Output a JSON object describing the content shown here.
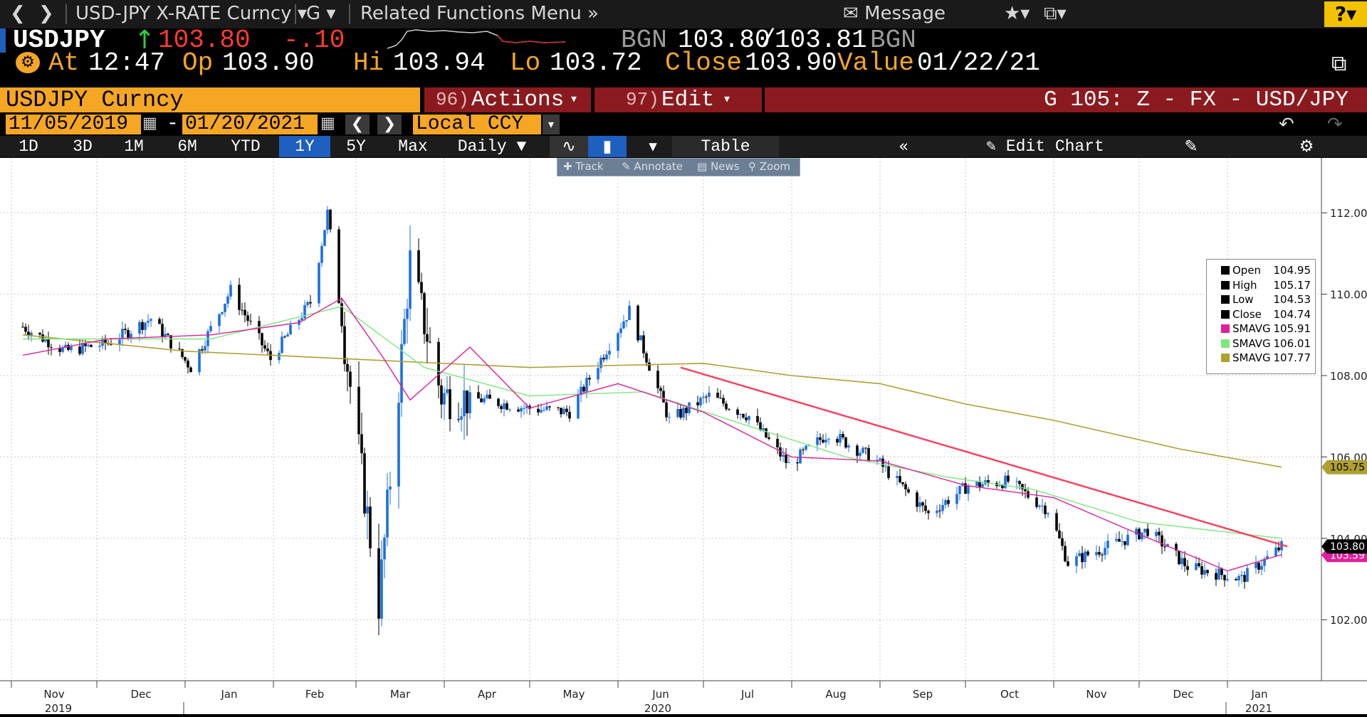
{
  "topnav": {
    "security": "USD-JPY X-RATE Curncy",
    "g_label": "G",
    "related": "Related Functions Menu",
    "message": "Message",
    "help": "?"
  },
  "quote": {
    "ticker": "USDJPY",
    "last": "103.80",
    "change": "-.10",
    "source": "BGN",
    "bid": "103.80",
    "slash": "/",
    "ask": "103.81",
    "source2": "BGN",
    "at_label": "At",
    "time": "12:47",
    "op_label": "Op",
    "open": "103.90",
    "hi_label": "Hi",
    "high": "103.94",
    "lo_label": "Lo",
    "low": "103.72",
    "close_label": "Close",
    "close": "103.90",
    "value_label": "Value",
    "value_date": "01/22/21"
  },
  "toolbar": {
    "security_field": "USDJPY Curncy",
    "actions_num": "96)",
    "actions": "Actions",
    "edit_num": "97)",
    "edit": "Edit",
    "title": "G 105: Z - FX - USD/JPY",
    "start_date": "11/05/2019",
    "dash": "-",
    "end_date": "01/20/2021",
    "currency": "Local CCY",
    "ranges": [
      "1D",
      "3D",
      "1M",
      "6M",
      "YTD",
      "1Y",
      "5Y",
      "Max"
    ],
    "selected_range": "1Y",
    "frequency": "Daily",
    "table": "Table",
    "edit_chart": "Edit Chart",
    "subtools": [
      "Track",
      "Annotate",
      "News",
      "Zoom"
    ]
  },
  "chart_data": {
    "type": "candlestick",
    "title": "",
    "ylim": [
      100.5,
      113.0
    ],
    "y_ticks": [
      "112.00",
      "110.00",
      "108.00",
      "106.00",
      "104.00",
      "102.00"
    ],
    "x_months": [
      "Nov",
      "Dec",
      "Jan",
      "Feb",
      "Mar",
      "Apr",
      "May",
      "Jun",
      "Jul",
      "Aug",
      "Sep",
      "Oct",
      "Nov",
      "Dec",
      "Jan"
    ],
    "x_years": [
      "2019",
      "2020",
      "2021"
    ],
    "grid": true,
    "legend_position": "right",
    "legend": [
      {
        "label": "Open",
        "value": "104.95",
        "color": "#000000"
      },
      {
        "label": "High",
        "value": "105.17",
        "color": "#000000"
      },
      {
        "label": "Low",
        "value": "104.53",
        "color": "#000000"
      },
      {
        "label": "Close",
        "value": "104.74",
        "color": "#000000"
      },
      {
        "label": "SMAVG",
        "value": "105.91",
        "color": "#e0209a"
      },
      {
        "label": "SMAVG",
        "value": "106.01",
        "color": "#7de87d"
      },
      {
        "label": "SMAVG",
        "value": "107.77",
        "color": "#b0a030"
      }
    ],
    "last_price_tag": "103.80",
    "ma_tag": "103.59",
    "long_ma_tag": "105.75",
    "close_series": [
      {
        "date": "2019-11-05",
        "value": 109.2
      },
      {
        "date": "2019-11-20",
        "value": 108.6
      },
      {
        "date": "2019-12-05",
        "value": 108.8
      },
      {
        "date": "2019-12-20",
        "value": 109.4
      },
      {
        "date": "2020-01-03",
        "value": 108.2
      },
      {
        "date": "2020-01-17",
        "value": 110.1
      },
      {
        "date": "2020-01-31",
        "value": 108.4
      },
      {
        "date": "2020-02-14",
        "value": 109.8
      },
      {
        "date": "2020-02-20",
        "value": 112.0
      },
      {
        "date": "2020-03-09",
        "value": 102.4
      },
      {
        "date": "2020-03-20",
        "value": 110.8
      },
      {
        "date": "2020-03-31",
        "value": 107.5
      },
      {
        "date": "2020-04-15",
        "value": 107.4
      },
      {
        "date": "2020-04-30",
        "value": 107.2
      },
      {
        "date": "2020-05-15",
        "value": 107.1
      },
      {
        "date": "2020-06-05",
        "value": 109.6
      },
      {
        "date": "2020-06-19",
        "value": 106.9
      },
      {
        "date": "2020-07-03",
        "value": 107.5
      },
      {
        "date": "2020-07-17",
        "value": 107.0
      },
      {
        "date": "2020-07-31",
        "value": 105.8
      },
      {
        "date": "2020-08-14",
        "value": 106.6
      },
      {
        "date": "2020-08-31",
        "value": 105.9
      },
      {
        "date": "2020-09-18",
        "value": 104.6
      },
      {
        "date": "2020-10-02",
        "value": 105.3
      },
      {
        "date": "2020-10-16",
        "value": 105.4
      },
      {
        "date": "2020-10-30",
        "value": 104.7
      },
      {
        "date": "2020-11-06",
        "value": 103.4
      },
      {
        "date": "2020-11-20",
        "value": 103.8
      },
      {
        "date": "2020-12-04",
        "value": 104.2
      },
      {
        "date": "2020-12-18",
        "value": 103.3
      },
      {
        "date": "2021-01-06",
        "value": 103.0
      },
      {
        "date": "2021-01-20",
        "value": 103.8
      }
    ],
    "sma_short": [
      {
        "date": "2019-11-05",
        "value": 108.5
      },
      {
        "date": "2019-12-05",
        "value": 108.9
      },
      {
        "date": "2020-01-10",
        "value": 109.0
      },
      {
        "date": "2020-02-10",
        "value": 109.3
      },
      {
        "date": "2020-02-25",
        "value": 109.9
      },
      {
        "date": "2020-03-10",
        "value": 108.5
      },
      {
        "date": "2020-03-20",
        "value": 107.4
      },
      {
        "date": "2020-04-10",
        "value": 108.7
      },
      {
        "date": "2020-05-01",
        "value": 107.2
      },
      {
        "date": "2020-06-01",
        "value": 107.8
      },
      {
        "date": "2020-07-01",
        "value": 107.1
      },
      {
        "date": "2020-08-01",
        "value": 106.0
      },
      {
        "date": "2020-09-01",
        "value": 105.9
      },
      {
        "date": "2020-10-01",
        "value": 105.3
      },
      {
        "date": "2020-11-01",
        "value": 105.0
      },
      {
        "date": "2020-12-01",
        "value": 104.1
      },
      {
        "date": "2021-01-01",
        "value": 103.2
      },
      {
        "date": "2021-01-20",
        "value": 103.6
      }
    ],
    "sma_mid": [
      {
        "date": "2019-11-05",
        "value": 108.9
      },
      {
        "date": "2020-01-10",
        "value": 108.9
      },
      {
        "date": "2020-02-25",
        "value": 109.7
      },
      {
        "date": "2020-03-25",
        "value": 108.2
      },
      {
        "date": "2020-05-01",
        "value": 107.5
      },
      {
        "date": "2020-06-10",
        "value": 107.6
      },
      {
        "date": "2020-07-15",
        "value": 106.8
      },
      {
        "date": "2020-08-20",
        "value": 106.0
      },
      {
        "date": "2020-09-25",
        "value": 105.5
      },
      {
        "date": "2020-10-25",
        "value": 105.2
      },
      {
        "date": "2020-12-01",
        "value": 104.4
      },
      {
        "date": "2021-01-20",
        "value": 104.0
      }
    ],
    "sma_long": [
      {
        "date": "2019-11-05",
        "value": 109.0
      },
      {
        "date": "2020-01-01",
        "value": 108.6
      },
      {
        "date": "2020-03-01",
        "value": 108.4
      },
      {
        "date": "2020-05-01",
        "value": 108.2
      },
      {
        "date": "2020-07-01",
        "value": 108.3
      },
      {
        "date": "2020-08-01",
        "value": 108.0
      },
      {
        "date": "2020-09-01",
        "value": 107.8
      },
      {
        "date": "2020-10-01",
        "value": 107.3
      },
      {
        "date": "2020-11-01",
        "value": 106.9
      },
      {
        "date": "2020-12-15",
        "value": 106.2
      },
      {
        "date": "2021-01-20",
        "value": 105.75
      }
    ],
    "trendline": [
      {
        "date": "2020-06-23",
        "value": 108.2
      },
      {
        "date": "2021-01-22",
        "value": 103.8
      }
    ]
  },
  "colors": {
    "up_candle": "#1c6fe0",
    "down_candle": "#000000",
    "sma_short": "#e0209a",
    "sma_mid": "#7de87d",
    "sma_long": "#b0a030",
    "trendline": "#ff3b5c",
    "accent_orange": "#f5a623",
    "bar_red": "#8b1a1f"
  }
}
